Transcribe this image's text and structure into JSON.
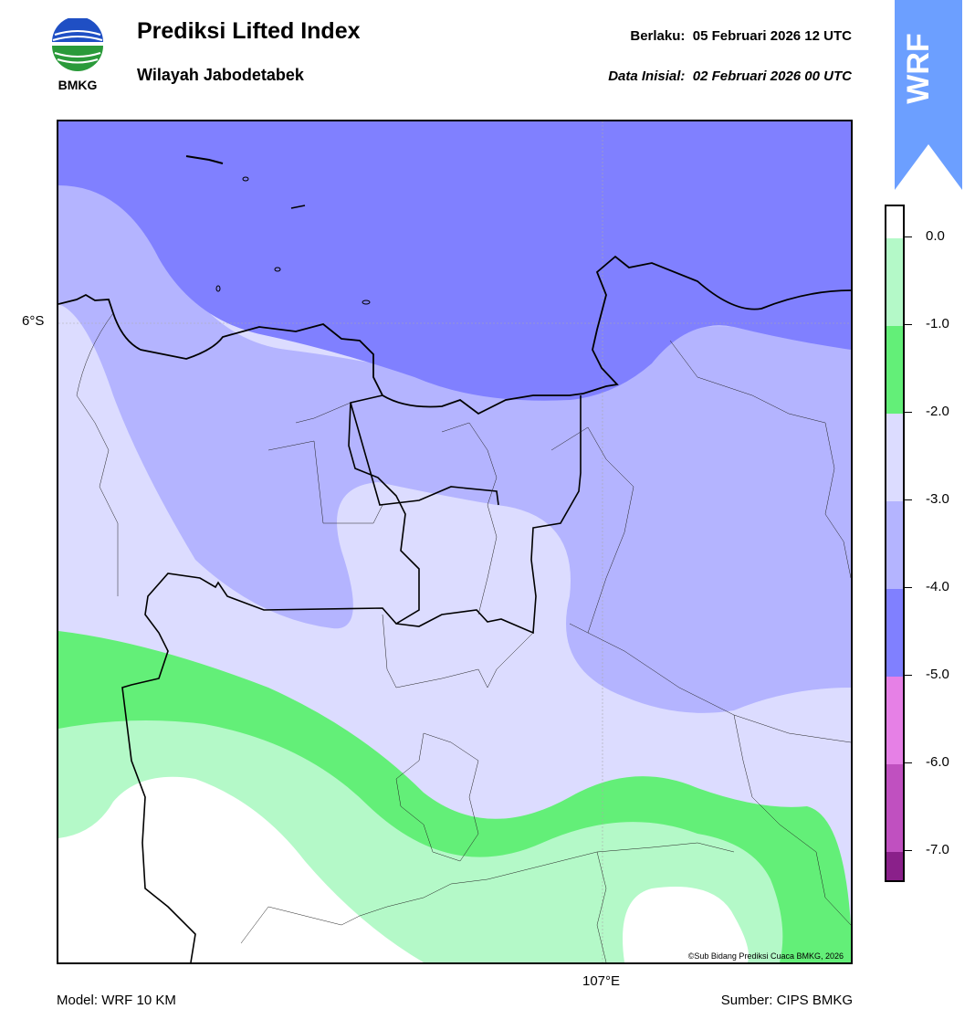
{
  "header": {
    "title": "Prediksi Lifted Index",
    "subtitle": "Wilayah Jabodetabek",
    "valid_label": "Berlaku:",
    "valid_time": "05 Februari 2026 12 UTC",
    "init_label": "Data Inisial:",
    "init_time": "02 Februari 2026 00 UTC"
  },
  "logo": {
    "text": "BMKG",
    "icon": "bmkg-logo"
  },
  "badge": {
    "text": "WRF",
    "color": "#6c9fff"
  },
  "map": {
    "lat_label": "6°S",
    "lon_label": "107°E",
    "credit": "©Sub Bidang Prediksi Cuaca BMKG, 2026"
  },
  "footer": {
    "model": "Model: WRF 10 KM",
    "source": "Sumber: CIPS BMKG"
  },
  "colorbar": {
    "labels": [
      "0.0",
      "-1.0",
      "-2.0",
      "-3.0",
      "-4.0",
      "-5.0",
      "-6.0",
      "-7.0"
    ],
    "colors": [
      "#ffffff",
      "#b4f9c8",
      "#63ef78",
      "#dcdcff",
      "#b4b4ff",
      "#8080ff",
      "#e680e6",
      "#c050c0",
      "#8a208a"
    ]
  }
}
